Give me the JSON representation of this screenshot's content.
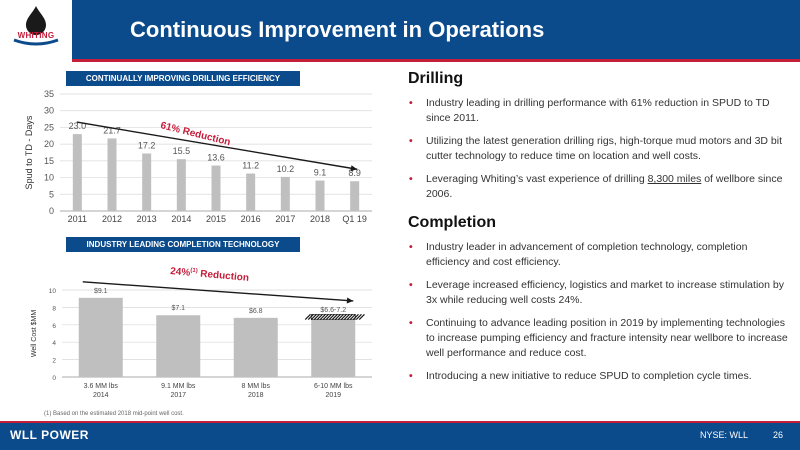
{
  "header": {
    "title": "Continuous Improvement in Operations",
    "logo_text": "WHITING",
    "logo_icon": "oil-drop-icon"
  },
  "drilling_panel": {
    "label": "CONTINUALLY IMPROVING DRILLING EFFICIENCY",
    "annotation": "61% Reduction"
  },
  "completion_panel": {
    "label": "INDUSTRY LEADING COMPLETION TECHNOLOGY",
    "annotation_main": "24%",
    "annotation_sup": "(1)",
    "annotation_tail": " Reduction"
  },
  "chart_data": [
    {
      "type": "bar",
      "categories": [
        "2011",
        "2012",
        "2013",
        "2014",
        "2015",
        "2016",
        "2017",
        "2018",
        "Q1 19"
      ],
      "values": [
        23.0,
        21.7,
        17.2,
        15.5,
        13.6,
        11.2,
        10.2,
        9.1,
        8.9
      ],
      "value_labels": [
        "23.0",
        "21.7",
        "17.2",
        "15.5",
        "13.6",
        "11.2",
        "10.2",
        "9.1",
        "8.9"
      ],
      "ylabel": "Spud to TD - Days",
      "ylim": [
        0,
        35
      ],
      "yticks": [
        0,
        5,
        10,
        15,
        20,
        25,
        30,
        35
      ],
      "grid": true,
      "trend_line": {
        "from": 23.0,
        "to": 8.9
      },
      "bar_color": "#bfbfbf"
    },
    {
      "type": "bar",
      "categories": [
        "3.6 MM lbs|2014",
        "9.1 MM lbs|2017",
        "8 MM lbs|2018",
        "6-10 MM lbs|2019"
      ],
      "values": [
        9.1,
        7.1,
        6.8,
        6.9
      ],
      "value_labels": [
        "$9.1",
        "$7.1",
        "$6.8",
        "$6.6-7.2"
      ],
      "range_band": {
        "index": 3,
        "low": 6.6,
        "high": 7.2
      },
      "ylabel": "Well Cost $MM",
      "ylim": [
        0,
        10
      ],
      "yticks": [
        0,
        2,
        4,
        6,
        8,
        10
      ],
      "grid": true,
      "trend_line": {
        "from": 9.1,
        "to": 6.9
      },
      "bar_color": "#bfbfbf"
    }
  ],
  "footnote": "(1)   Based on the estimated 2018 mid-point well cost.",
  "drilling": {
    "title": "Drilling",
    "bullets": [
      {
        "text": "Industry leading in drilling performance with 61% reduction in SPUD to TD since 2011."
      },
      {
        "text": "Utilizing the latest generation drilling rigs, high-torque mud motors and 3D bit cutter technology to reduce time on location and well costs."
      },
      {
        "before": "Leveraging Whiting’s vast experience of drilling ",
        "underline": "8,300 miles",
        "after": " of wellbore since 2006."
      }
    ]
  },
  "completion": {
    "title": "Completion",
    "bullets": [
      {
        "text": "Industry leader in advancement of completion technology, completion efficiency and cost efficiency."
      },
      {
        "text": "Leverage increased efficiency, logistics and market to increase stimulation by 3x while reducing well costs 24%."
      },
      {
        "text": "Continuing to advance leading position in 2019 by implementing technologies to increase pumping efficiency and fracture intensity near wellbore to increase well performance and reduce cost."
      },
      {
        "text": "Introducing a new initiative to reduce SPUD to completion cycle times."
      }
    ]
  },
  "footer": {
    "brand": "WLL POWER",
    "ticker": "NYSE: WLL",
    "page": "26"
  },
  "colors": {
    "navy": "#0b4a8b",
    "red": "#c41e3a",
    "bar": "#bfbfbf"
  }
}
